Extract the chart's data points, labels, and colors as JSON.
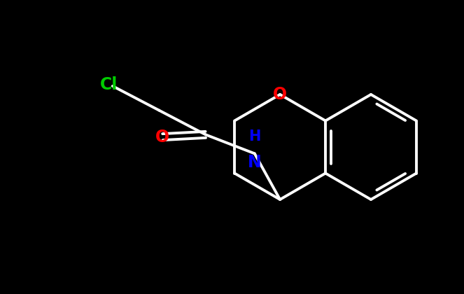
{
  "bg_color": "#000000",
  "bond_color": "#ffffff",
  "cl_color": "#00cc00",
  "nh_color": "#0000ff",
  "o_carbonyl_color": "#ff0000",
  "o_ring_color": "#ff0000",
  "lw": 2.8,
  "font_size_atoms": 17,
  "figsize": [
    6.63,
    4.2
  ],
  "dpi": 100,
  "xlim": [
    0,
    6.63
  ],
  "ylim": [
    0,
    4.2
  ]
}
